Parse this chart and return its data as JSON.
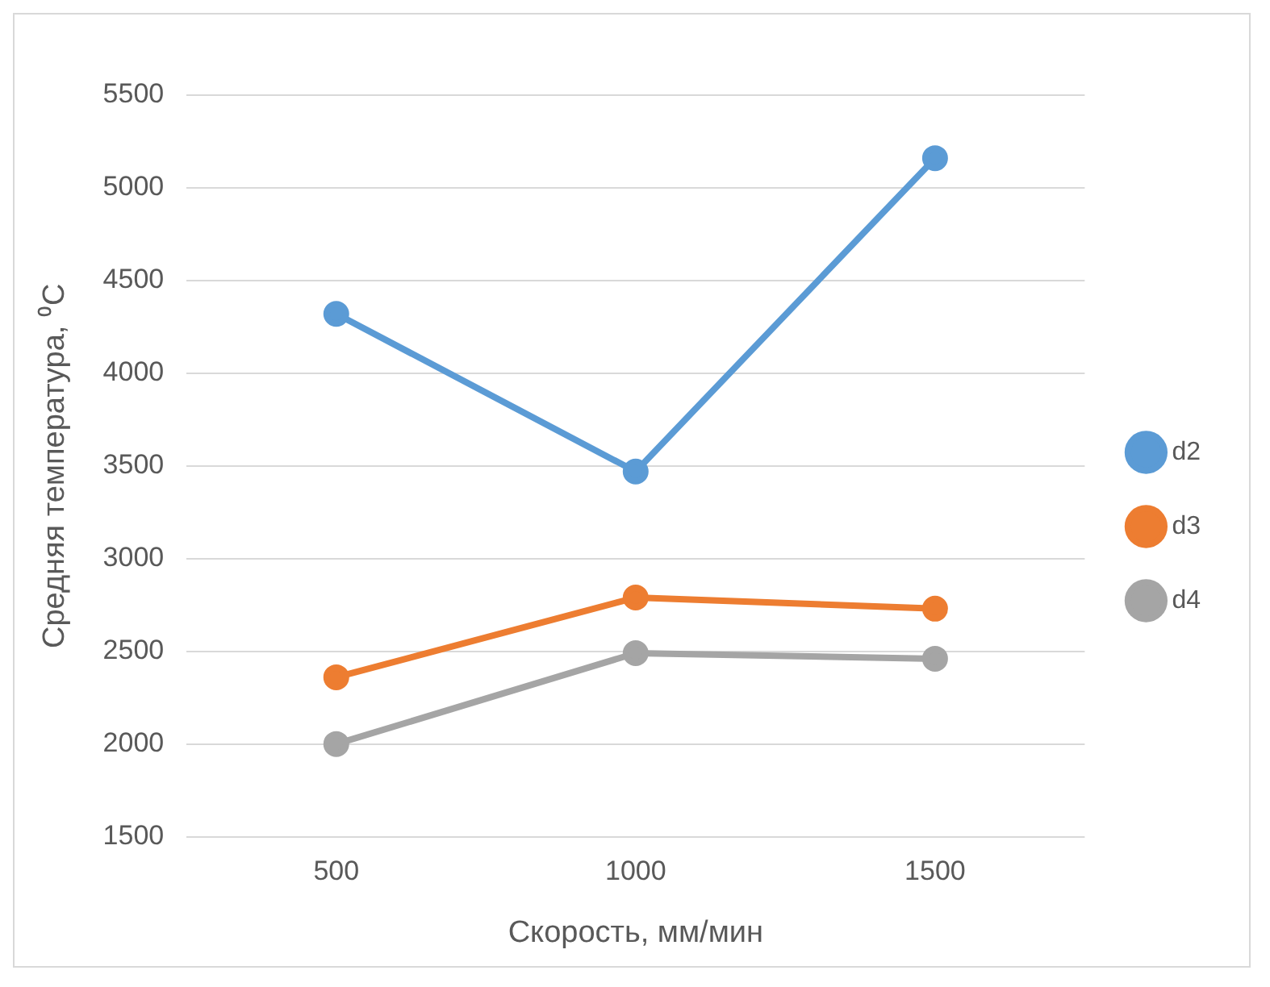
{
  "chart_data": {
    "type": "line",
    "xlabel": "Скорость, мм/мин",
    "ylabel": "Средняя температура, ⁰C",
    "categories": [
      "500",
      "1000",
      "1500"
    ],
    "series": [
      {
        "name": "d2",
        "color": "#5b9bd5",
        "values": [
          4320,
          3470,
          5160
        ]
      },
      {
        "name": "d3",
        "color": "#ed7d31",
        "values": [
          2360,
          2790,
          2730
        ]
      },
      {
        "name": "d4",
        "color": "#a5a5a5",
        "values": [
          2000,
          2490,
          2460
        ]
      }
    ],
    "ylim": [
      1500,
      5500
    ],
    "yticks": [
      1500,
      2000,
      2500,
      3000,
      3500,
      4000,
      4500,
      5000,
      5500
    ],
    "grid": "y",
    "legend": "right",
    "marker": "circle",
    "line_style": "solid"
  }
}
